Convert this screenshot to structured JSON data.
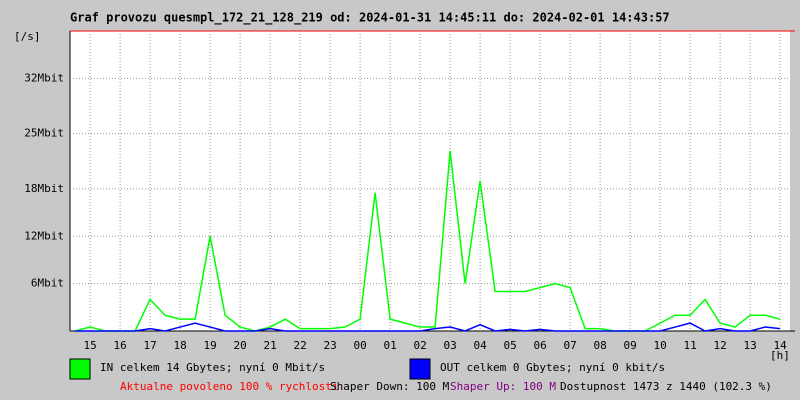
{
  "chart_data": {
    "type": "line",
    "title": "Graf provozu quesmpl_172_21_128_219 od: 2024-01-31 14:45:11 do: 2024-02-01 14:43:57",
    "y_label": "[/s]",
    "x_label": "[h]",
    "x": [
      14.5,
      15,
      15.5,
      16,
      16.5,
      17,
      17.5,
      18,
      18.5,
      19,
      19.5,
      20,
      20.5,
      21,
      21.5,
      22,
      22.5,
      23,
      23.5,
      24,
      24.5,
      25,
      25.5,
      26,
      26.5,
      27,
      27.5,
      28,
      28.5,
      29,
      29.5,
      30,
      30.5,
      31,
      31.5,
      32,
      32.5,
      33,
      33.5,
      34,
      34.5,
      35,
      35.5,
      36,
      36.5,
      37,
      37.5,
      38
    ],
    "series": [
      {
        "name": "IN celkem 14 Gbytes; nyní 0 Mbit/s",
        "color": "#00ff00",
        "values": [
          0,
          0.5,
          0,
          0,
          0,
          4,
          2,
          1.5,
          1.5,
          12,
          2,
          0.5,
          0,
          0.5,
          1.5,
          0.3,
          0.3,
          0.3,
          0.5,
          1.5,
          17.5,
          1.5,
          1,
          0.5,
          0.5,
          22.8,
          6,
          19,
          5,
          5,
          5,
          5.5,
          6,
          5.5,
          0.3,
          0.3,
          0,
          0,
          0,
          1,
          2,
          2,
          4,
          1,
          0.5,
          2,
          2,
          1.5
        ]
      },
      {
        "name": "OUT celkem 0 Gbytes; nyní 0 kbit/s",
        "color": "#0000ff",
        "values": [
          0,
          0,
          0,
          0,
          0,
          0.3,
          0,
          0.5,
          1,
          0.5,
          0,
          0,
          0,
          0.3,
          0,
          0,
          0,
          0,
          0,
          0,
          0,
          0,
          0,
          0,
          0.3,
          0.5,
          0,
          0.8,
          0,
          0.2,
          0,
          0.2,
          0,
          0,
          0,
          0,
          0,
          0,
          0,
          0,
          0.5,
          1,
          0,
          0.3,
          0,
          0,
          0.5,
          0.3
        ]
      }
    ],
    "xlim": [
      14.33,
      38.33
    ],
    "xticks": [
      {
        "value": 15,
        "label": "15"
      },
      {
        "value": 16,
        "label": "16"
      },
      {
        "value": 17,
        "label": "17"
      },
      {
        "value": 18,
        "label": "18"
      },
      {
        "value": 19,
        "label": "19"
      },
      {
        "value": 20,
        "label": "20"
      },
      {
        "value": 21,
        "label": "21"
      },
      {
        "value": 22,
        "label": "22"
      },
      {
        "value": 23,
        "label": "23"
      },
      {
        "value": 24,
        "label": "00"
      },
      {
        "value": 25,
        "label": "01"
      },
      {
        "value": 26,
        "label": "02"
      },
      {
        "value": 27,
        "label": "03"
      },
      {
        "value": 28,
        "label": "04"
      },
      {
        "value": 29,
        "label": "05"
      },
      {
        "value": 30,
        "label": "06"
      },
      {
        "value": 31,
        "label": "07"
      },
      {
        "value": 32,
        "label": "08"
      },
      {
        "value": 33,
        "label": "09"
      },
      {
        "value": 34,
        "label": "10"
      },
      {
        "value": 35,
        "label": "11"
      },
      {
        "value": 36,
        "label": "12"
      },
      {
        "value": 37,
        "label": "13"
      },
      {
        "value": 38,
        "label": "14"
      }
    ],
    "ylim": [
      0,
      38
    ],
    "yticks": [
      {
        "value": 6,
        "label": "6Mbit"
      },
      {
        "value": 12,
        "label": "12Mbit"
      },
      {
        "value": 18,
        "label": "18Mbit"
      },
      {
        "value": 25,
        "label": "25Mbit"
      },
      {
        "value": 32,
        "label": "32Mbit"
      }
    ],
    "grid": true,
    "footer": [
      {
        "text": "Aktualne povoleno 100 % rychlosti",
        "color": "#ff0000"
      },
      {
        "text": "Shaper Down: 100 M",
        "color": "#000000"
      },
      {
        "text": "Shaper Up: 100 M",
        "color": "#800080"
      },
      {
        "text": "Dostupnost 1473 z 1440 (102.3 %)",
        "color": "#000000"
      }
    ]
  }
}
